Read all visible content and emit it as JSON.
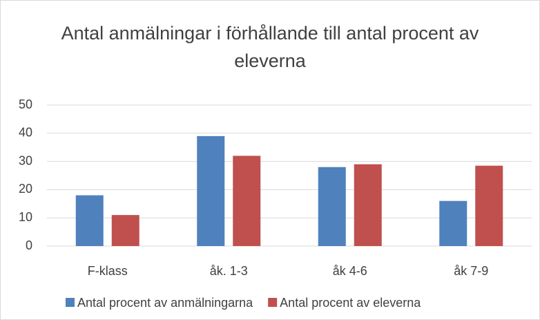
{
  "chart_data": {
    "type": "bar",
    "title": "Antal anmälningar i förhållande till antal procent av eleverna",
    "categories": [
      "F-klass",
      "åk. 1-3",
      "åk 4-6",
      "åk 7-9"
    ],
    "series": [
      {
        "name": "Antal procent av anmälningarna",
        "color": "#4f81bd",
        "values": [
          18,
          39,
          28,
          16
        ]
      },
      {
        "name": "Antal procent av eleverna",
        "color": "#c0504d",
        "values": [
          11,
          32,
          29,
          28.5
        ]
      }
    ],
    "ylim": [
      0,
      50
    ],
    "yticks": [
      0,
      10,
      20,
      30,
      40,
      50
    ],
    "grid": true,
    "legend": "bottom"
  }
}
